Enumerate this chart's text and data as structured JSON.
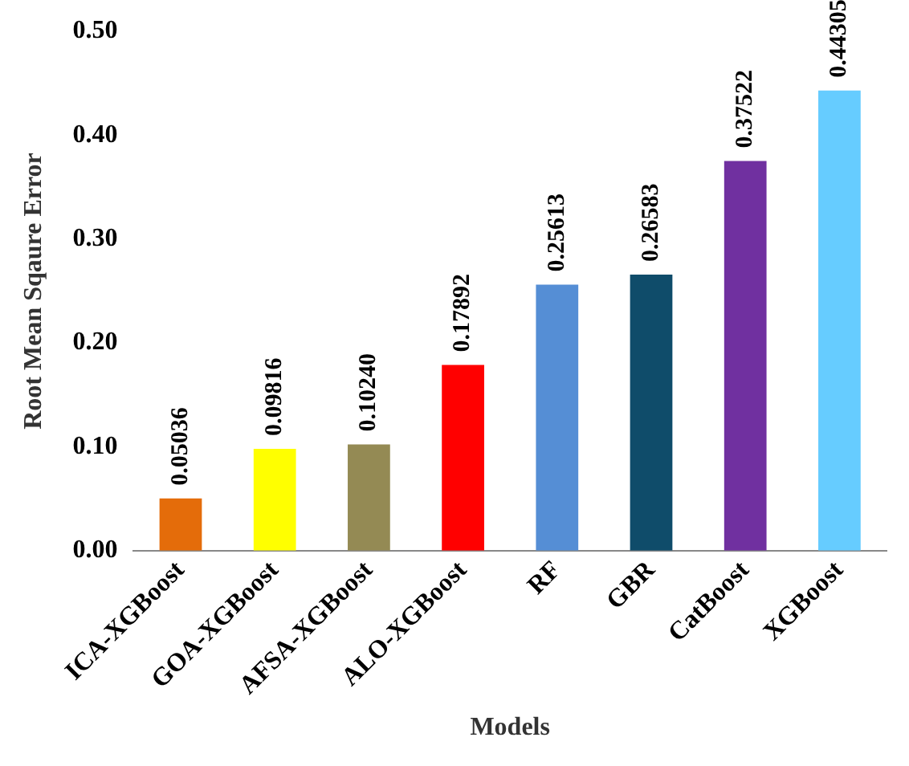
{
  "chart_data": {
    "type": "bar",
    "xlabel": "Models",
    "ylabel": "Root Mean Sqaure Error",
    "categories": [
      "ICA-XGBoost",
      "GOA-XGBoost",
      "AFSA-XGBoost",
      "ALO-XGBoost",
      "RF",
      "GBR",
      "CatBoost",
      "XGBoost"
    ],
    "values": [
      0.05036,
      0.09816,
      0.1024,
      0.17892,
      0.25613,
      0.26583,
      0.37522,
      0.44305
    ],
    "value_labels": [
      "0.05036",
      "0.09816",
      "0.10240",
      "0.17892",
      "0.25613",
      "0.26583",
      "0.37522",
      "0.44305"
    ],
    "colors": [
      "#e46c0a",
      "#ffff00",
      "#948a54",
      "#ff0000",
      "#558ed5",
      "#0f4c6a",
      "#7030a0",
      "#66ccff"
    ],
    "ylim": [
      0,
      0.5
    ],
    "yticks": [
      {
        "value": 0,
        "label": "0.00"
      },
      {
        "value": 0.1,
        "label": "0.10"
      },
      {
        "value": 0.2,
        "label": "0.20"
      },
      {
        "value": 0.3,
        "label": "0.30"
      },
      {
        "value": 0.4,
        "label": "0.40"
      },
      {
        "value": 0.5,
        "label": "0.50"
      }
    ],
    "grid": false,
    "legend": false
  }
}
